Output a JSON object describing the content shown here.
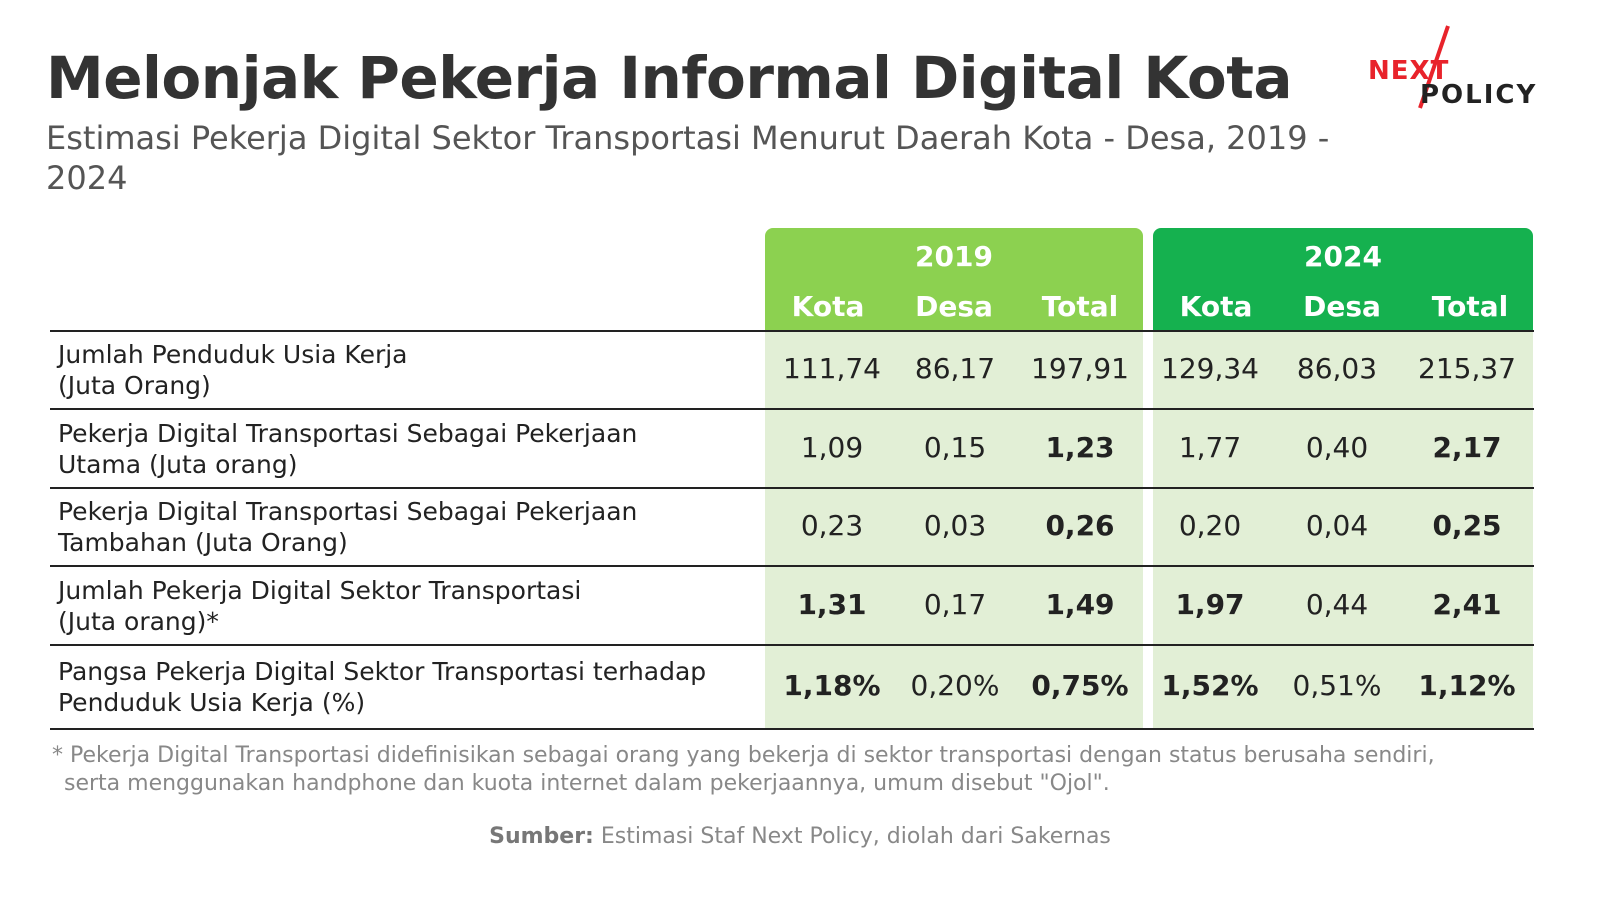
{
  "title": "Melonjak Pekerja Informal Digital Kota",
  "subtitle": "Estimasi Pekerja Digital Sektor Transportasi Menurut Daerah Kota - Desa, 2019 - 2024",
  "logo": {
    "line1": "NEXT",
    "line2": "POLICY"
  },
  "colors": {
    "header_2019": "#8cd150",
    "header_2024": "#15b14f",
    "body_tint": "#e2efd6"
  },
  "chart_data": {
    "type": "table",
    "groups": [
      {
        "year": "2019",
        "columns": [
          "Kota",
          "Desa",
          "Total"
        ]
      },
      {
        "year": "2024",
        "columns": [
          "Kota",
          "Desa",
          "Total"
        ]
      }
    ],
    "rows": [
      {
        "label": [
          "Jumlah Penduduk Usia Kerja",
          "(Juta Orang)"
        ],
        "values": [
          "111,74",
          "86,17",
          "197,91",
          "129,34",
          "86,03",
          "215,37"
        ],
        "bold": [
          false,
          false,
          false,
          false,
          false,
          false
        ]
      },
      {
        "label": [
          "Pekerja Digital Transportasi Sebagai Pekerjaan",
          "Utama (Juta orang)"
        ],
        "values": [
          "1,09",
          "0,15",
          "1,23",
          "1,77",
          "0,40",
          "2,17"
        ],
        "bold": [
          false,
          false,
          true,
          false,
          false,
          true
        ]
      },
      {
        "label": [
          "Pekerja Digital Transportasi Sebagai Pekerjaan",
          "Tambahan (Juta Orang)"
        ],
        "values": [
          "0,23",
          "0,03",
          "0,26",
          "0,20",
          "0,04",
          "0,25"
        ],
        "bold": [
          false,
          false,
          true,
          false,
          false,
          true
        ]
      },
      {
        "label": [
          "Jumlah Pekerja Digital Sektor Transportasi",
          "(Juta orang)*"
        ],
        "values": [
          "1,31",
          "0,17",
          "1,49",
          "1,97",
          "0,44",
          "2,41"
        ],
        "bold": [
          true,
          false,
          true,
          true,
          false,
          true
        ]
      },
      {
        "label": [
          "Pangsa Pekerja Digital Sektor Transportasi terhadap",
          "Penduduk Usia Kerja (%)"
        ],
        "values": [
          "1,18%",
          "0,20%",
          "0,75%",
          "1,52%",
          "0,51%",
          "1,12%"
        ],
        "bold": [
          true,
          false,
          true,
          true,
          false,
          true
        ]
      }
    ]
  },
  "footnote": {
    "line1": "* Pekerja Digital Transportasi didefinisikan sebagai orang yang bekerja di sektor transportasi dengan status berusaha sendiri,",
    "line2": "serta menggunakan handphone dan kuota internet dalam pekerjaannya, umum disebut \"Ojol\"."
  },
  "source": {
    "label": "Sumber:",
    "text": " Estimasi Staf Next Policy, diolah dari Sakernas"
  }
}
